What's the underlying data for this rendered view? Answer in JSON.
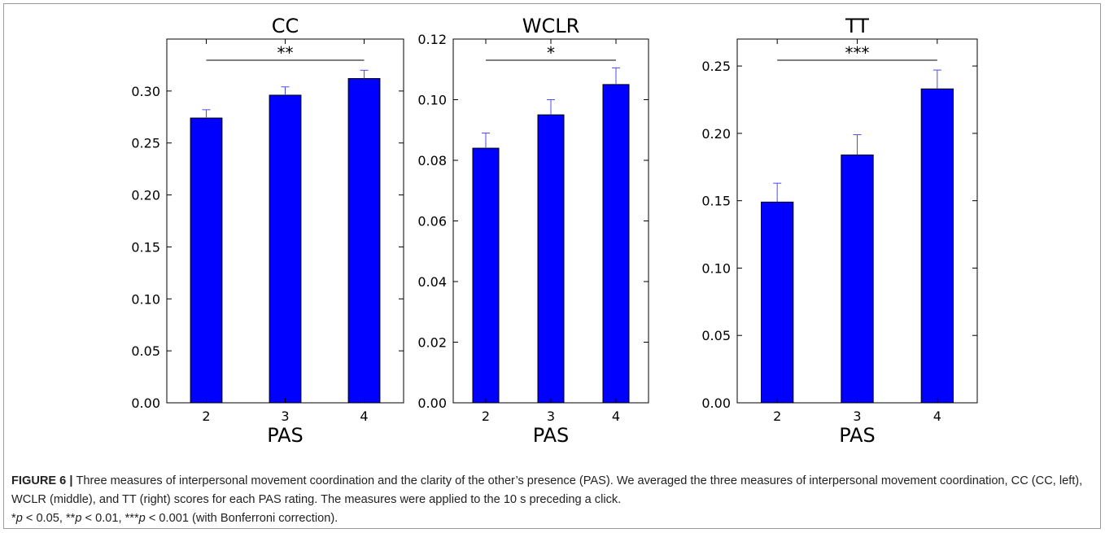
{
  "chart_data": [
    {
      "type": "bar",
      "title": "CC",
      "xlabel": "PAS",
      "ylabel": "",
      "categories": [
        "2",
        "3",
        "4"
      ],
      "values": [
        0.274,
        0.296,
        0.312
      ],
      "errors": [
        0.008,
        0.008,
        0.008
      ],
      "ylim": [
        0.0,
        0.35
      ],
      "yticks": [
        "0.00",
        "0.05",
        "0.10",
        "0.15",
        "0.20",
        "0.25",
        "0.30"
      ],
      "significance": {
        "from": "2",
        "to": "4",
        "label": "**"
      },
      "bar_color": "#0000ff",
      "error_color": "#4a4aff",
      "grid": false
    },
    {
      "type": "bar",
      "title": "WCLR",
      "xlabel": "PAS",
      "ylabel": "",
      "categories": [
        "2",
        "3",
        "4"
      ],
      "values": [
        0.084,
        0.095,
        0.105
      ],
      "errors": [
        0.005,
        0.005,
        0.0055
      ],
      "ylim": [
        0.0,
        0.12
      ],
      "yticks": [
        "0.00",
        "0.02",
        "0.04",
        "0.06",
        "0.08",
        "0.10",
        "0.12"
      ],
      "significance": {
        "from": "2",
        "to": "4",
        "label": "*"
      },
      "bar_color": "#0000ff",
      "error_color": "#4a4aff",
      "grid": false
    },
    {
      "type": "bar",
      "title": "TT",
      "xlabel": "PAS",
      "ylabel": "",
      "categories": [
        "2",
        "3",
        "4"
      ],
      "values": [
        0.149,
        0.184,
        0.233
      ],
      "errors": [
        0.014,
        0.015,
        0.014
      ],
      "ylim": [
        0.0,
        0.27
      ],
      "yticks": [
        "0.00",
        "0.05",
        "0.10",
        "0.15",
        "0.20",
        "0.25"
      ],
      "significance": {
        "from": "2",
        "to": "4",
        "label": "***"
      },
      "bar_color": "#0000ff",
      "error_color": "#4a4aff",
      "grid": false
    }
  ],
  "caption": {
    "label": "FIGURE 6",
    "separator": "|",
    "text": "Three measures of interpersonal movement coordination and the clarity of the other’s presence (PAS). We averaged the three measures of interpersonal movement coordination, CC (CC, left), WCLR (middle), and TT (right) scores for each PAS rating. The measures were applied to the 10 s preceding a click.",
    "sig": [
      {
        "stars": "*",
        "p": "p",
        "threshold": " < 0.05, "
      },
      {
        "stars": "**",
        "p": "p",
        "threshold": " < 0.01, "
      },
      {
        "stars": "***",
        "p": "p",
        "threshold": " < 0.001 (with Bonferroni correction)."
      }
    ]
  }
}
